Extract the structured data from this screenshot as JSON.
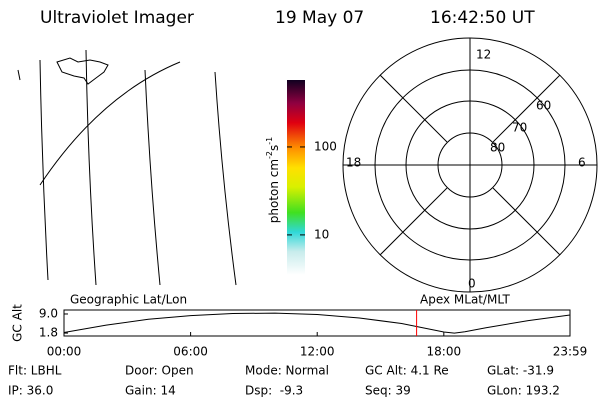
{
  "header": {
    "instrument": "Ultraviolet Imager",
    "date": "19 May 07",
    "time": "16:42:50 UT"
  },
  "colorbar": {
    "label": [
      "photon cm",
      "-2",
      "s",
      "-1"
    ],
    "log": true,
    "lim": [
      3.5,
      577
    ],
    "ticks": [
      10,
      100
    ]
  },
  "polar": {
    "top": "12",
    "right": "6",
    "bottom": "0",
    "left": "18",
    "rings": [
      "60",
      "70",
      "80"
    ]
  },
  "panel_titles": [
    "Geographic Lat/Lon",
    "Apex MLat/MLT"
  ],
  "chart_data": {
    "type": "line",
    "ylabel": "GC Alt",
    "x": [
      0,
      2,
      4,
      6,
      8,
      10,
      12,
      14,
      16,
      17,
      18,
      18.5,
      19,
      20,
      22,
      23.98
    ],
    "series": [
      {
        "color": "#000000",
        "values": [
          2.0,
          4.8,
          7.0,
          8.4,
          9.2,
          9.3,
          8.8,
          7.5,
          5.4,
          3.8,
          2.2,
          1.8,
          2.3,
          3.8,
          6.5,
          8.6
        ]
      }
    ],
    "xlim": [
      0,
      23.98
    ],
    "ylim": [
      0.7,
      10.5
    ],
    "xticks": [
      {
        "value": 0,
        "label": "00:00"
      },
      {
        "value": 6,
        "label": "06:00"
      },
      {
        "value": 12,
        "label": "12:00"
      },
      {
        "value": 18,
        "label": "18:00"
      },
      {
        "value": 23.98,
        "label": "23:59"
      }
    ],
    "yticks": [
      {
        "value": 1.8,
        "label": "1.8"
      },
      {
        "value": 9.0,
        "label": "9.0"
      }
    ],
    "marker": {
      "x": 16.71,
      "color": "#ff0000"
    }
  },
  "footer": [
    [
      "Flt: LBHL",
      "Door: Open",
      "Mode: Normal",
      "GC Alt: 4.1 Re",
      "GLat: -31.9"
    ],
    [
      "IP: 36.0",
      "Gain: 14",
      "Dsp:  -9.3",
      "Seq: 39",
      "GLon: 193.2"
    ]
  ]
}
